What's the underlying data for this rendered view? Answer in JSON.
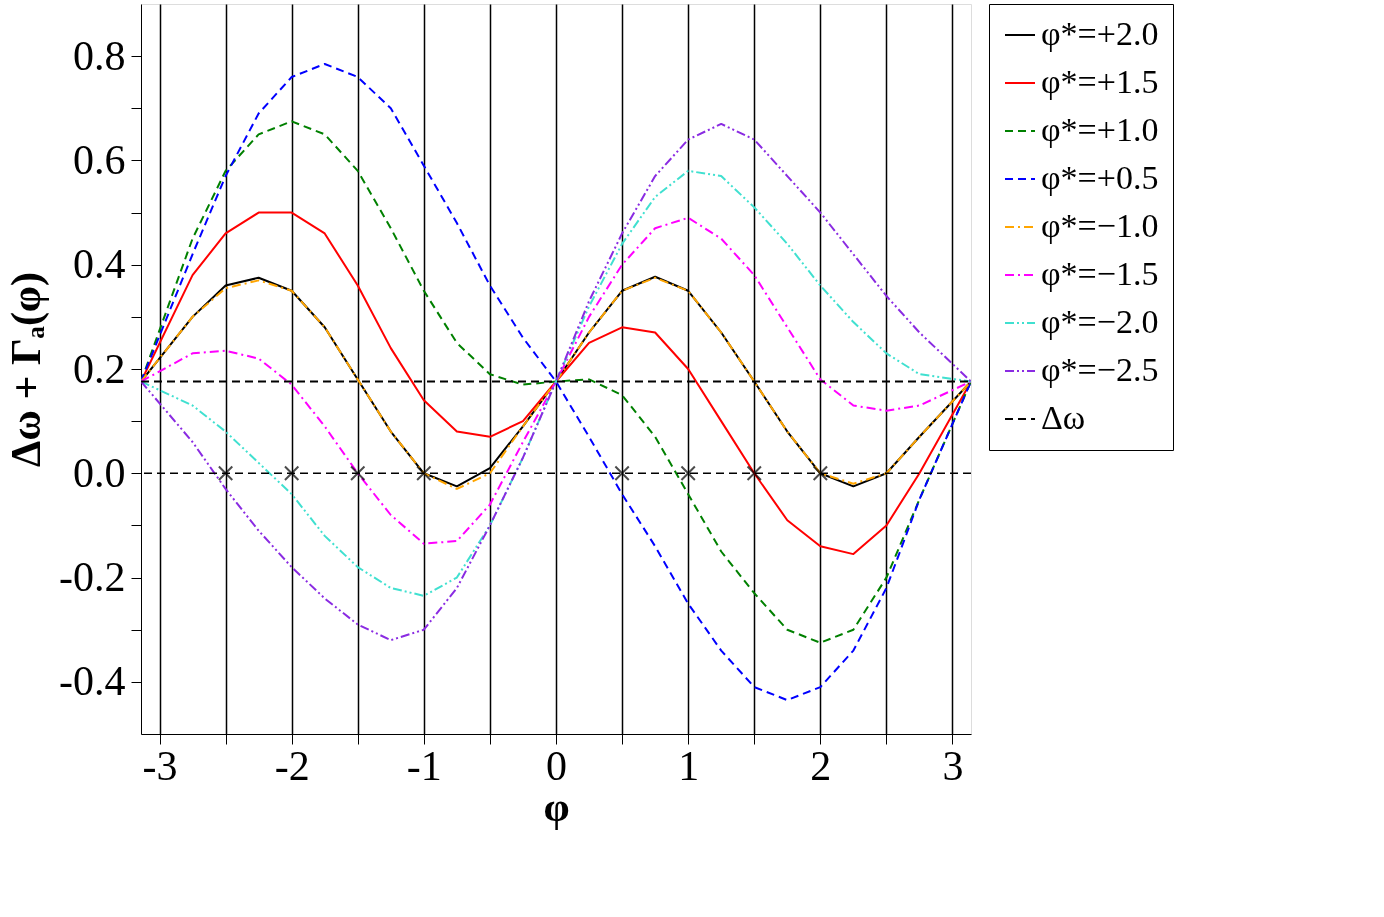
{
  "chart_data": {
    "type": "line",
    "xlabel": "φ",
    "ylabel": "Δω + Γₐ(φ)",
    "x": [
      -3.14,
      -2.75,
      -2.5,
      -2.25,
      -2,
      -1.75,
      -1.5,
      -1.25,
      -1,
      -0.75,
      -0.5,
      -0.25,
      0,
      0.25,
      0.5,
      0.75,
      1,
      1.25,
      1.5,
      1.75,
      2,
      2.25,
      2.5,
      2.75,
      3.14
    ],
    "series": [
      {
        "name": "φ*=+2.0",
        "color": "#000000",
        "line_style": "solid",
        "values": [
          0.176,
          0.3,
          0.36,
          0.375,
          0.35,
          0.28,
          0.18,
          0.08,
          0.0,
          -0.025,
          0.01,
          0.09,
          0.176,
          0.27,
          0.35,
          0.377,
          0.35,
          0.27,
          0.176,
          0.08,
          0.0,
          -0.025,
          0.0,
          0.07,
          0.176
        ]
      },
      {
        "name": "φ*=+1.5",
        "color": "#ff0000",
        "line_style": "solid",
        "values": [
          0.176,
          0.38,
          0.46,
          0.5,
          0.5,
          0.46,
          0.36,
          0.24,
          0.14,
          0.08,
          0.07,
          0.1,
          0.176,
          0.25,
          0.28,
          0.27,
          0.2,
          0.1,
          0.0,
          -0.09,
          -0.14,
          -0.155,
          -0.1,
          0.0,
          0.176
        ]
      },
      {
        "name": "φ*=+1.0",
        "color": "#008000",
        "line_style": "dashed",
        "values": [
          0.176,
          0.45,
          0.58,
          0.65,
          0.675,
          0.65,
          0.58,
          0.47,
          0.35,
          0.25,
          0.19,
          0.17,
          0.176,
          0.18,
          0.15,
          0.07,
          -0.04,
          -0.15,
          -0.23,
          -0.3,
          -0.325,
          -0.3,
          -0.2,
          -0.05,
          0.176
        ]
      },
      {
        "name": "φ*=+0.5",
        "color": "#0000ff",
        "line_style": "dashed",
        "values": [
          0.176,
          0.42,
          0.57,
          0.69,
          0.76,
          0.785,
          0.76,
          0.7,
          0.59,
          0.48,
          0.36,
          0.26,
          0.176,
          0.07,
          -0.04,
          -0.14,
          -0.25,
          -0.34,
          -0.41,
          -0.435,
          -0.41,
          -0.34,
          -0.22,
          -0.05,
          0.176
        ]
      },
      {
        "name": "φ*=−1.0",
        "color": "#ffa500",
        "line_style": "dashdot",
        "values": [
          0.176,
          0.3,
          0.355,
          0.37,
          0.35,
          0.28,
          0.18,
          0.08,
          0.0,
          -0.03,
          0.0,
          0.09,
          0.176,
          0.27,
          0.35,
          0.375,
          0.35,
          0.27,
          0.176,
          0.08,
          0.0,
          -0.02,
          0.0,
          0.07,
          0.176
        ]
      },
      {
        "name": "φ*=−1.5",
        "color": "#ff00ff",
        "line_style": "dashdot",
        "values": [
          0.176,
          0.23,
          0.235,
          0.22,
          0.17,
          0.09,
          0.0,
          -0.08,
          -0.135,
          -0.13,
          -0.06,
          0.06,
          0.176,
          0.3,
          0.4,
          0.47,
          0.49,
          0.45,
          0.38,
          0.28,
          0.18,
          0.13,
          0.12,
          0.13,
          0.176
        ]
      },
      {
        "name": "φ*=−2.0",
        "color": "#40e0d0",
        "line_style": "dashdotdot",
        "values": [
          0.176,
          0.13,
          0.08,
          0.02,
          -0.04,
          -0.12,
          -0.18,
          -0.22,
          -0.235,
          -0.2,
          -0.1,
          0.03,
          0.176,
          0.32,
          0.44,
          0.53,
          0.58,
          0.57,
          0.51,
          0.44,
          0.36,
          0.29,
          0.23,
          0.19,
          0.176
        ]
      },
      {
        "name": "φ*=−2.5",
        "color": "#8a2be2",
        "line_style": "dashdotdot",
        "values": [
          0.176,
          0.06,
          -0.03,
          -0.11,
          -0.18,
          -0.24,
          -0.29,
          -0.32,
          -0.3,
          -0.22,
          -0.1,
          0.03,
          0.176,
          0.33,
          0.46,
          0.57,
          0.64,
          0.67,
          0.64,
          0.57,
          0.5,
          0.42,
          0.34,
          0.27,
          0.176
        ]
      },
      {
        "name": "Δω",
        "color": "#000000",
        "line_style": "dashed",
        "x": [
          -3.14,
          3.14
        ],
        "values": [
          0.176,
          0.176
        ]
      },
      {
        "type": "scatter",
        "marker": "cross",
        "color": "#000000",
        "x": [
          -2.5,
          -2,
          -1.5,
          -1,
          0.5,
          1,
          1.5,
          2
        ],
        "values": [
          0,
          0,
          0,
          0,
          0,
          0,
          0,
          0
        ]
      }
    ],
    "ref_lines": [
      {
        "axis": "y",
        "value": 0,
        "color": "#000000",
        "line_style": "dashed"
      }
    ],
    "xlim": [
      -3.14,
      3.14
    ],
    "xticks": [
      -3,
      {
        "value": -2.5,
        "label": null
      },
      -2,
      {
        "value": -1.5,
        "label": null
      },
      -1,
      {
        "value": -0.5,
        "label": null
      },
      0,
      {
        "value": 0.5,
        "label": null
      },
      1,
      {
        "value": 1.5,
        "label": null
      },
      2,
      {
        "value": 2.5,
        "label": null
      },
      3
    ],
    "ylim": [
      -0.5,
      0.9
    ],
    "yticks": [
      {
        "value": -0.4,
        "label": "-0.4"
      },
      {
        "value": -0.3,
        "label": null
      },
      {
        "value": -0.2,
        "label": "-0.2"
      },
      {
        "value": -0.1,
        "label": null
      },
      {
        "value": 0,
        "label": "0.0"
      },
      {
        "value": 0.1,
        "label": null
      },
      {
        "value": 0.2,
        "label": "0.2"
      },
      {
        "value": 0.3,
        "label": null
      },
      {
        "value": 0.4,
        "label": "0.4"
      },
      {
        "value": 0.5,
        "label": null
      },
      {
        "value": 0.6,
        "label": "0.6"
      },
      {
        "value": 0.7,
        "label": null
      },
      {
        "value": 0.8,
        "label": "0.8"
      }
    ],
    "grid": "x",
    "legend": "top right"
  }
}
